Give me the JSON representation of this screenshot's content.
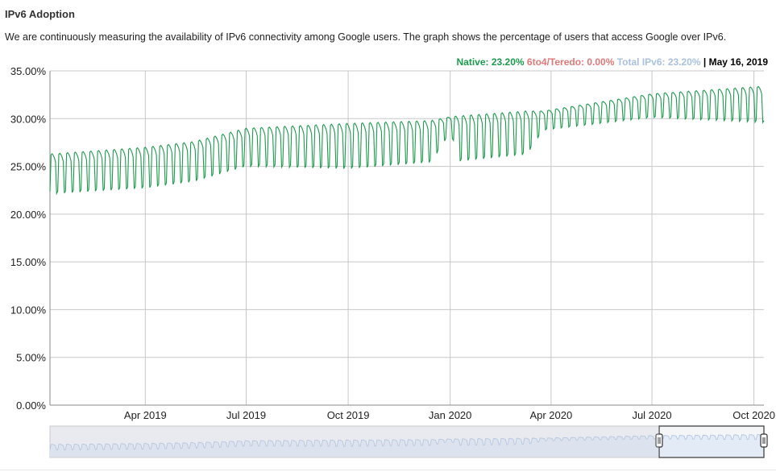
{
  "header": {
    "title": "IPv6 Adoption",
    "description": "We are continuously measuring the availability of IPv6 connectivity among Google users. The graph shows the percentage of users that access Google over IPv6."
  },
  "legend": {
    "native": "Native: 23.20%",
    "teredo": "6to4/Teredo: 0.00%",
    "total": "Total IPv6: 23.20%",
    "separator": "|",
    "date": "May 16, 2019"
  },
  "colors": {
    "native": "#1c9a4d",
    "teredo": "#e07878",
    "total": "#a9c0e2",
    "grid": "#c8c8c8",
    "navigator_line": "#a9c0e2"
  },
  "chart_data": {
    "type": "line",
    "y_ticks": [
      "35.00%",
      "30.00%",
      "25.00%",
      "20.00%",
      "15.00%",
      "10.00%",
      "5.00%",
      "0.00%"
    ],
    "x_ticks": [
      "Apr 2019",
      "Jul 2019",
      "Oct 2019",
      "Jan 2020",
      "Apr 2020",
      "Jul 2020",
      "Oct 2020"
    ],
    "ylim": [
      0,
      35
    ],
    "grid": true,
    "x_range": [
      "2019-01-05",
      "2020-10-10"
    ],
    "series": [
      {
        "name": "Native",
        "weekly_cycle": true,
        "trend_points": [
          {
            "date": "2019-01-05",
            "low": 21.9,
            "high": 26.3
          },
          {
            "date": "2019-04-01",
            "low": 22.5,
            "high": 27.0
          },
          {
            "date": "2019-05-15",
            "low": 23.2,
            "high": 27.6
          },
          {
            "date": "2019-07-01",
            "low": 24.8,
            "high": 29.0
          },
          {
            "date": "2019-10-01",
            "low": 24.5,
            "high": 29.5
          },
          {
            "date": "2019-12-15",
            "low": 25.2,
            "high": 29.8
          },
          {
            "date": "2020-01-01",
            "low": 28.5,
            "high": 30.2
          },
          {
            "date": "2020-01-10",
            "low": 25.3,
            "high": 30.3
          },
          {
            "date": "2020-03-10",
            "low": 26.0,
            "high": 30.8
          },
          {
            "date": "2020-03-25",
            "low": 28.7,
            "high": 30.8
          },
          {
            "date": "2020-07-01",
            "low": 30.0,
            "high": 32.6
          },
          {
            "date": "2020-10-10",
            "low": 29.4,
            "high": 33.4
          }
        ]
      }
    ]
  }
}
